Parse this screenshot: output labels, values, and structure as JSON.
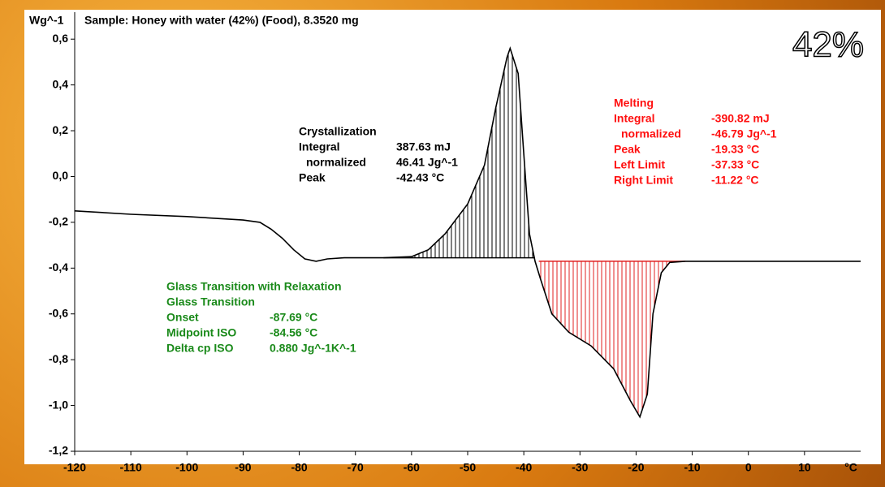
{
  "chart_data": {
    "type": "line",
    "title": "Sample: Honey with water (42%) (Food), 8.3520 mg",
    "y_label": "Wg^-1",
    "x_label": "°C",
    "badge": "42%",
    "x": [
      -120,
      -110,
      -100,
      -90,
      -87,
      -85,
      -83,
      -81,
      -79,
      -77,
      -75,
      -72,
      -65,
      -60,
      -57,
      -54,
      -50,
      -47,
      -45,
      -43,
      -42.43,
      -41,
      -40,
      -39,
      -38,
      -37,
      -35,
      -32,
      -28,
      -24,
      -21,
      -19.33,
      -18,
      -17,
      -15.5,
      -14,
      -11.22,
      0,
      20
    ],
    "series": [
      {
        "name": "Honey with water (42%)",
        "color": "#000000",
        "values": [
          -0.15,
          -0.165,
          -0.175,
          -0.19,
          -0.2,
          -0.23,
          -0.27,
          -0.32,
          -0.36,
          -0.37,
          -0.36,
          -0.355,
          -0.355,
          -0.35,
          -0.32,
          -0.25,
          -0.12,
          0.05,
          0.3,
          0.52,
          0.56,
          0.45,
          0.1,
          -0.25,
          -0.37,
          -0.45,
          -0.6,
          -0.68,
          -0.74,
          -0.84,
          -0.98,
          -1.05,
          -0.95,
          -0.6,
          -0.42,
          -0.375,
          -0.37,
          -0.37,
          -0.37
        ]
      }
    ],
    "xlim": [
      -120,
      20
    ],
    "ylim": [
      -1.2,
      0.7
    ],
    "xticks": [
      -120,
      -110,
      -100,
      -90,
      -80,
      -70,
      -60,
      -50,
      -40,
      -30,
      -20,
      -10,
      0,
      10
    ],
    "yticks": [
      {
        "value": -1.2,
        "label": "-1,2"
      },
      {
        "value": -1.0,
        "label": "-1,0"
      },
      {
        "value": -0.8,
        "label": "-0,8"
      },
      {
        "value": -0.6,
        "label": "-0,6"
      },
      {
        "value": -0.4,
        "label": "-0,4"
      },
      {
        "value": -0.2,
        "label": "-0,2"
      },
      {
        "value": 0,
        "label": "0,0"
      },
      {
        "value": 0.2,
        "label": "0,2"
      },
      {
        "value": 0.4,
        "label": "0,4"
      },
      {
        "value": 0.6,
        "label": "0,6"
      }
    ],
    "areas": [
      {
        "color": "#000000",
        "from": -65,
        "to": -38,
        "baseline": -0.355
      },
      {
        "color": "#e02020",
        "from": -37.33,
        "to": -11.22,
        "baseline": -0.37
      }
    ],
    "annotations": [
      {
        "color": "#000000",
        "lines": [
          [
            "Crystallization"
          ],
          [
            "Integral",
            "387.63 mJ"
          ],
          [
            "normalized",
            "46.41 Jg^-1"
          ],
          [
            "Peak",
            "-42.43 °C"
          ]
        ]
      },
      {
        "color": "#ff1010",
        "lines": [
          [
            "Melting"
          ],
          [
            "Integral",
            "-390.82 mJ"
          ],
          [
            "normalized",
            "-46.79 Jg^-1"
          ],
          [
            "Peak",
            "-19.33 °C"
          ],
          [
            "Left Limit",
            "-37.33 °C"
          ],
          [
            "Right Limit",
            "-11.22 °C"
          ]
        ]
      },
      {
        "color": "#1a8a1a",
        "lines": [
          [
            "Glass Transition with Relaxation"
          ],
          [
            "Glass Transition"
          ],
          [
            "Onset",
            "-87.69 °C"
          ],
          [
            "Midpoint ISO",
            "-84.56 °C"
          ],
          [
            "Delta cp ISO",
            "0.880 Jg^-1K^-1"
          ]
        ]
      }
    ]
  }
}
